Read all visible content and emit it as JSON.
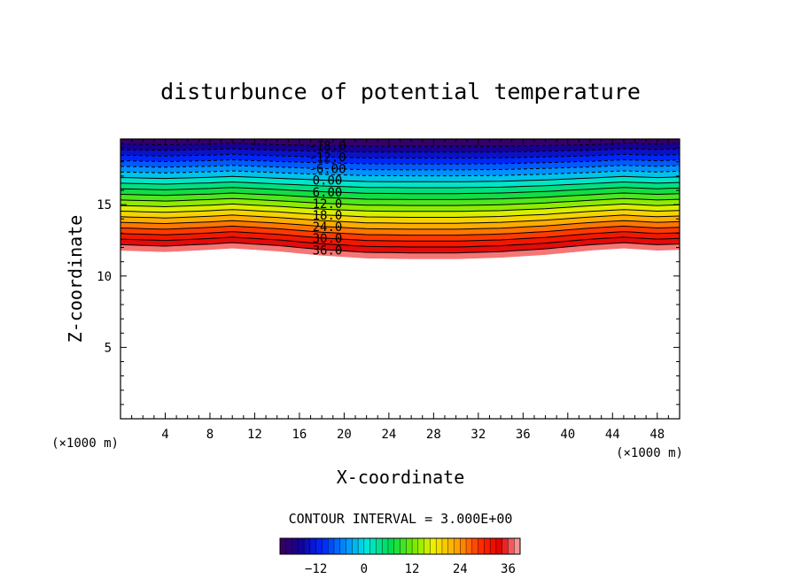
{
  "chart_data": {
    "type": "contour",
    "title": "disturbunce of potential temperature",
    "xlabel": "X-coordinate",
    "ylabel": "Z-coordinate",
    "x_unit": "(×1000 m)",
    "y_unit": "(×1000 m)",
    "xlim": [
      0,
      50
    ],
    "ylim": [
      0,
      19.6
    ],
    "x_ticks": [
      4,
      8,
      12,
      16,
      20,
      24,
      28,
      32,
      36,
      40,
      44,
      48
    ],
    "y_ticks": [
      5,
      10,
      15
    ],
    "contour_interval_text": "CONTOUR INTERVAL = 3.000E+00",
    "contour_interval": 3,
    "levels": [
      -18,
      -15,
      -12,
      -9,
      -6,
      -3,
      0,
      3,
      6,
      9,
      12,
      15,
      18,
      21,
      24,
      27,
      30,
      33,
      36,
      39
    ],
    "negative_contours": "dashed",
    "labeled_contours": [
      {
        "text": "-18.0",
        "value": -18
      },
      {
        "text": "-12.0",
        "value": -12
      },
      {
        "text": "-6.00",
        "value": -6
      },
      {
        "text": "0.00",
        "value": 0
      },
      {
        "text": "6.00",
        "value": 6
      },
      {
        "text": "12.0",
        "value": 12
      },
      {
        "text": "18.0",
        "value": 18
      },
      {
        "text": "24.0",
        "value": 24
      },
      {
        "text": "30.0",
        "value": 30
      },
      {
        "text": "36.0",
        "value": 36
      }
    ],
    "label_x": 18.5,
    "field_description_points": {
      "x": [
        0,
        4,
        8,
        10,
        14,
        18,
        22,
        26,
        30,
        34,
        38,
        42,
        45,
        48,
        50
      ],
      "z_of_39_contour": [
        11.8,
        11.7,
        11.85,
        11.95,
        11.75,
        11.45,
        11.25,
        11.2,
        11.2,
        11.3,
        11.5,
        11.8,
        11.95,
        11.8,
        11.85
      ],
      "z_of_minus18_contour": [
        19.25,
        19.2,
        19.25,
        19.3,
        19.2,
        19.15,
        19.1,
        19.1,
        19.1,
        19.1,
        19.15,
        19.2,
        19.3,
        19.25,
        19.3
      ]
    },
    "colorbar": {
      "min": -21,
      "max": 39,
      "ticks": [
        -12,
        0,
        12,
        24,
        36
      ],
      "tick_labels": [
        "−12",
        "0",
        "12",
        "24",
        "36"
      ]
    },
    "grid": false
  }
}
